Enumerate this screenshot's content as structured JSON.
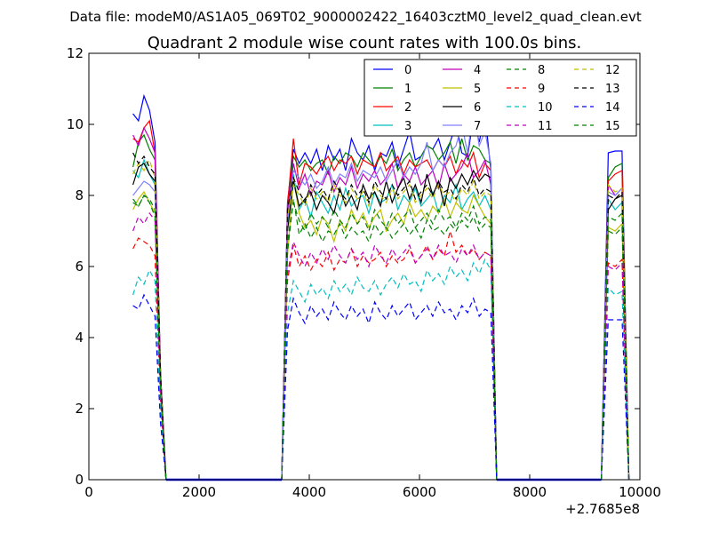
{
  "chart_data": {
    "type": "line",
    "suptitle": "Data file: modeM0/AS1A05_069T02_9000002422_16403cztM0_level2_quad_clean.evt",
    "title": "Quadrant 2 module wise count rates with 100.0s bins.",
    "xlabel": "",
    "ylabel": "",
    "x_offset_label": "+2.7685e8",
    "xlim": [
      0,
      10000
    ],
    "ylim": [
      0,
      12
    ],
    "xticks": [
      0,
      2000,
      4000,
      6000,
      8000,
      10000
    ],
    "xtick_labels": [
      "0",
      "2000",
      "4000",
      "6000",
      "8000",
      "10000"
    ],
    "yticks": [
      0,
      2,
      4,
      6,
      8,
      10,
      12
    ],
    "ytick_labels": [
      "0",
      "2",
      "4",
      "6",
      "8",
      "10",
      "12"
    ],
    "grid": false,
    "legend_position": "top-right",
    "legend_columns": 4,
    "segments": [
      {
        "name": "0",
        "color": "#0000ff",
        "dash": false,
        "values": [
          [
            10.3,
            10.1,
            10.8,
            10.4,
            9.5,
            3.0,
            0
          ],
          [
            0,
            7.8,
            9.3,
            8.9,
            9.2,
            8.9,
            9.3,
            8.7,
            9.4,
            9.0,
            9.3,
            8.7,
            9.6,
            9.2,
            9.0,
            9.4,
            8.7,
            9.2,
            9.1,
            9.5,
            8.8,
            9.3,
            9.8,
            9.0,
            9.1,
            9.4,
            9.3,
            9.6,
            9.0,
            9.5,
            10.0,
            9.2,
            9.1,
            10.2,
            9.5,
            10.3,
            8.7,
            0
          ],
          [
            0,
            9.2,
            9.25,
            9.25,
            0
          ]
        ]
      },
      {
        "name": "1",
        "color": "#008000",
        "dash": false,
        "values": [
          [
            8.8,
            9.5,
            9.7,
            9.3,
            9.0,
            3.0,
            0
          ],
          [
            0,
            7.6,
            9.1,
            8.8,
            9.0,
            8.7,
            8.9,
            9.0,
            8.6,
            9.1,
            8.9,
            9.2,
            9.1,
            8.8,
            9.2,
            9.0,
            8.8,
            9.1,
            8.9,
            9.3,
            8.7,
            9.0,
            9.2,
            8.8,
            9.1,
            9.4,
            9.3,
            9.0,
            9.2,
            9.5,
            8.9,
            9.6,
            9.0,
            9.4,
            9.3,
            9.0,
            8.9,
            0
          ],
          [
            0,
            8.5,
            8.8,
            8.9,
            0
          ]
        ]
      },
      {
        "name": "2",
        "color": "#ff0000",
        "dash": false,
        "values": [
          [
            9.6,
            9.5,
            9.9,
            10.1,
            9.2,
            3.0,
            0
          ],
          [
            0,
            7.7,
            9.6,
            8.3,
            8.9,
            8.8,
            8.6,
            8.9,
            9.1,
            8.7,
            9.0,
            8.9,
            9.1,
            8.6,
            9.0,
            8.9,
            8.8,
            9.2,
            8.7,
            8.9,
            9.1,
            8.6,
            9.0,
            8.8,
            8.9,
            9.0,
            8.7,
            9.0,
            8.8,
            9.1,
            8.6,
            9.0,
            8.8,
            9.2,
            8.5,
            8.9,
            8.7,
            0
          ],
          [
            0,
            8.4,
            8.6,
            8.7,
            0
          ]
        ]
      },
      {
        "name": "3",
        "color": "#00bfbf",
        "dash": false,
        "values": [
          [
            8.7,
            8.5,
            9.0,
            8.6,
            8.3,
            2.8,
            0
          ],
          [
            0,
            7.2,
            8.6,
            7.6,
            7.9,
            7.4,
            8.1,
            7.8,
            7.5,
            8.0,
            7.6,
            8.2,
            7.7,
            7.9,
            8.0,
            7.5,
            8.1,
            7.8,
            7.9,
            8.3,
            7.6,
            8.0,
            7.8,
            8.2,
            7.7,
            7.9,
            8.1,
            7.5,
            8.0,
            7.8,
            8.3,
            7.6,
            7.9,
            8.1,
            7.7,
            8.0,
            7.6,
            0
          ],
          [
            0,
            7.9,
            7.6,
            7.8,
            0
          ]
        ]
      },
      {
        "name": "4",
        "color": "#bf00bf",
        "dash": false,
        "values": [
          [
            9.7,
            9.4,
            9.9,
            9.6,
            9.2,
            3.0,
            0
          ],
          [
            0,
            7.5,
            8.9,
            8.2,
            8.6,
            8.0,
            8.4,
            8.3,
            8.7,
            8.1,
            8.5,
            8.3,
            8.8,
            8.2,
            8.6,
            8.4,
            8.7,
            8.3,
            8.5,
            8.9,
            8.2,
            8.6,
            8.4,
            8.8,
            8.3,
            8.5,
            8.7,
            8.2,
            8.9,
            8.4,
            8.6,
            8.8,
            9.2,
            8.5,
            8.7,
            9.0,
            8.3,
            0
          ],
          [
            0,
            8.3,
            8.0,
            8.2,
            0
          ]
        ]
      },
      {
        "name": "5",
        "color": "#bfbf00",
        "dash": false,
        "values": [
          [
            7.6,
            7.9,
            8.1,
            7.8,
            7.5,
            2.5,
            0
          ],
          [
            0,
            6.3,
            8.5,
            7.5,
            7.1,
            7.3,
            6.9,
            7.4,
            7.2,
            6.7,
            7.3,
            7.0,
            7.6,
            7.2,
            7.5,
            7.1,
            7.4,
            7.6,
            7.0,
            7.3,
            7.5,
            7.2,
            7.8,
            7.4,
            7.6,
            7.3,
            7.7,
            7.5,
            7.9,
            7.4,
            7.8,
            7.6,
            7.5,
            8.0,
            7.7,
            7.4,
            7.2,
            0
          ],
          [
            0,
            7.1,
            7.0,
            7.2,
            0
          ]
        ]
      },
      {
        "name": "6",
        "color": "#000000",
        "dash": false,
        "values": [
          [
            8.3,
            8.8,
            8.9,
            8.6,
            8.4,
            2.8,
            0
          ],
          [
            0,
            7.0,
            8.4,
            7.7,
            7.9,
            8.1,
            7.6,
            8.0,
            7.8,
            7.5,
            8.2,
            7.7,
            8.0,
            7.6,
            8.3,
            7.9,
            8.1,
            7.7,
            8.4,
            7.8,
            8.2,
            8.5,
            7.9,
            8.3,
            7.8,
            8.6,
            8.0,
            8.4,
            7.7,
            8.5,
            8.2,
            8.6,
            8.3,
            8.7,
            8.4,
            8.6,
            8.5,
            0
          ],
          [
            0,
            7.6,
            7.9,
            8.0,
            0
          ]
        ]
      },
      {
        "name": "7",
        "color": "#8080ff",
        "dash": false,
        "values": [
          [
            8.0,
            8.2,
            8.4,
            8.3,
            8.1,
            2.7,
            0
          ],
          [
            0,
            7.3,
            8.7,
            8.5,
            8.3,
            8.6,
            8.2,
            8.4,
            8.8,
            8.3,
            8.6,
            8.5,
            8.9,
            8.4,
            8.7,
            8.6,
            8.5,
            8.8,
            8.4,
            8.7,
            9.0,
            8.5,
            8.8,
            8.6,
            8.9,
            9.5,
            8.7,
            9.0,
            8.8,
            9.2,
            9.4,
            10.0,
            9.2,
            10.4,
            9.4,
            9.8,
            8.9,
            0
          ],
          [
            0,
            8.1,
            8.0,
            8.2,
            0
          ]
        ]
      },
      {
        "name": "8",
        "color": "#008000",
        "dash": true,
        "values": [
          [
            7.8,
            7.7,
            8.0,
            7.9,
            7.6,
            2.5,
            0
          ],
          [
            0,
            6.4,
            7.9,
            6.9,
            7.2,
            6.8,
            7.1,
            6.7,
            7.0,
            6.9,
            7.2,
            6.8,
            7.1,
            6.9,
            7.0,
            6.7,
            7.2,
            6.9,
            7.1,
            6.8,
            7.0,
            7.2,
            6.9,
            7.1,
            6.8,
            7.3,
            7.0,
            7.1,
            6.9,
            7.2,
            7.0,
            7.3,
            7.1,
            7.4,
            7.0,
            7.2,
            7.1,
            0
          ],
          [
            0,
            7.0,
            6.9,
            7.1,
            0
          ]
        ]
      },
      {
        "name": "9",
        "color": "#ff0000",
        "dash": true,
        "values": [
          [
            6.5,
            6.8,
            6.7,
            6.6,
            6.3,
            2.2,
            0
          ],
          [
            0,
            5.6,
            6.6,
            6.0,
            6.3,
            5.9,
            6.2,
            6.0,
            6.4,
            5.9,
            6.2,
            6.1,
            6.5,
            6.0,
            6.3,
            6.1,
            6.2,
            6.4,
            6.0,
            6.3,
            6.1,
            6.2,
            6.5,
            6.1,
            6.3,
            6.6,
            6.2,
            6.5,
            6.3,
            7.0,
            6.4,
            6.6,
            6.3,
            6.5,
            6.2,
            6.4,
            6.3,
            0
          ],
          [
            0,
            6.1,
            6.0,
            6.2,
            0
          ]
        ]
      },
      {
        "name": "10",
        "color": "#00bfbf",
        "dash": true,
        "values": [
          [
            5.2,
            5.7,
            5.5,
            5.9,
            5.6,
            1.9,
            0
          ],
          [
            0,
            4.7,
            5.6,
            5.3,
            5.0,
            5.5,
            5.2,
            5.4,
            5.1,
            5.6,
            5.3,
            5.5,
            5.2,
            5.7,
            5.4,
            5.3,
            5.6,
            5.2,
            5.5,
            5.7,
            5.4,
            5.8,
            5.5,
            5.6,
            5.3,
            5.9,
            5.6,
            5.8,
            5.5,
            6.0,
            5.7,
            5.9,
            5.6,
            6.1,
            5.8,
            6.2,
            5.9,
            0
          ],
          [
            0,
            5.4,
            5.2,
            5.3,
            0
          ]
        ]
      },
      {
        "name": "11",
        "color": "#bf00bf",
        "dash": true,
        "values": [
          [
            7.0,
            7.4,
            7.2,
            7.5,
            7.3,
            2.4,
            0
          ],
          [
            0,
            5.8,
            6.7,
            6.3,
            6.0,
            6.4,
            6.1,
            6.5,
            6.2,
            6.6,
            6.3,
            6.1,
            6.5,
            6.2,
            6.4,
            6.0,
            6.6,
            6.3,
            6.1,
            6.5,
            6.2,
            6.4,
            6.6,
            6.1,
            6.3,
            6.5,
            6.2,
            6.6,
            6.3,
            6.4,
            6.1,
            6.5,
            6.3,
            6.6,
            6.2,
            6.4,
            6.3,
            0
          ],
          [
            0,
            6.0,
            5.9,
            6.1,
            0
          ]
        ]
      },
      {
        "name": "12",
        "color": "#bfbf00",
        "dash": true,
        "values": [
          [
            8.6,
            8.9,
            8.7,
            9.0,
            8.5,
            2.8,
            0
          ],
          [
            0,
            7.4,
            8.3,
            8.0,
            7.7,
            8.2,
            7.9,
            8.1,
            7.8,
            8.3,
            8.0,
            7.8,
            8.2,
            7.9,
            8.1,
            7.7,
            8.3,
            8.0,
            7.8,
            8.2,
            7.9,
            8.1,
            8.3,
            7.8,
            8.0,
            8.2,
            7.9,
            8.3,
            8.0,
            8.1,
            7.8,
            8.2,
            8.0,
            8.4,
            7.9,
            8.1,
            8.0,
            0
          ],
          [
            0,
            8.3,
            8.1,
            8.2,
            0
          ]
        ]
      },
      {
        "name": "13",
        "color": "#000000",
        "dash": true,
        "values": [
          [
            9.2,
            8.9,
            9.1,
            8.8,
            8.6,
            2.9,
            0
          ],
          [
            0,
            7.6,
            8.5,
            8.1,
            7.8,
            8.3,
            8.0,
            8.2,
            7.9,
            8.4,
            8.1,
            7.9,
            8.3,
            8.0,
            8.2,
            7.8,
            8.4,
            8.1,
            7.9,
            8.3,
            8.0,
            8.2,
            8.4,
            7.9,
            8.1,
            8.3,
            8.0,
            8.4,
            8.1,
            8.2,
            7.9,
            8.3,
            8.1,
            8.5,
            8.0,
            8.2,
            8.1,
            0
          ],
          [
            0,
            8.0,
            7.9,
            8.1,
            0
          ]
        ]
      },
      {
        "name": "14",
        "color": "#0000ff",
        "dash": true,
        "values": [
          [
            4.9,
            4.8,
            5.2,
            4.9,
            4.6,
            1.6,
            0
          ],
          [
            0,
            4.2,
            5.1,
            4.7,
            4.4,
            4.9,
            4.6,
            4.8,
            4.5,
            5.0,
            4.7,
            4.5,
            4.9,
            4.6,
            4.8,
            4.4,
            5.0,
            4.7,
            4.5,
            4.9,
            4.6,
            4.8,
            5.0,
            4.5,
            4.7,
            4.9,
            4.6,
            5.0,
            4.7,
            4.8,
            4.5,
            4.9,
            4.7,
            5.1,
            4.6,
            4.8,
            4.7,
            0
          ],
          [
            0,
            4.5,
            4.5,
            4.5,
            0
          ]
        ]
      },
      {
        "name": "15",
        "color": "#008000",
        "dash": true,
        "values": [
          [
            7.9,
            7.7,
            8.0,
            7.8,
            7.4,
            2.5,
            0
          ],
          [
            0,
            6.7,
            7.8,
            7.3,
            7.0,
            7.5,
            7.2,
            7.4,
            7.1,
            7.6,
            7.3,
            7.1,
            7.5,
            7.2,
            7.4,
            7.0,
            7.6,
            7.3,
            7.1,
            7.5,
            7.2,
            7.4,
            7.6,
            7.1,
            7.3,
            7.5,
            7.2,
            7.6,
            7.3,
            7.4,
            7.1,
            7.5,
            7.3,
            7.7,
            7.2,
            7.4,
            7.3,
            0
          ],
          [
            0,
            7.4,
            7.3,
            7.5,
            0
          ]
        ]
      }
    ],
    "segment_x_ranges": [
      [
        800,
        1400
      ],
      [
        3500,
        7400
      ],
      [
        9300,
        9800
      ]
    ],
    "flat_zero_ranges": [
      [
        1400,
        3500
      ],
      [
        7400,
        9300
      ]
    ]
  }
}
